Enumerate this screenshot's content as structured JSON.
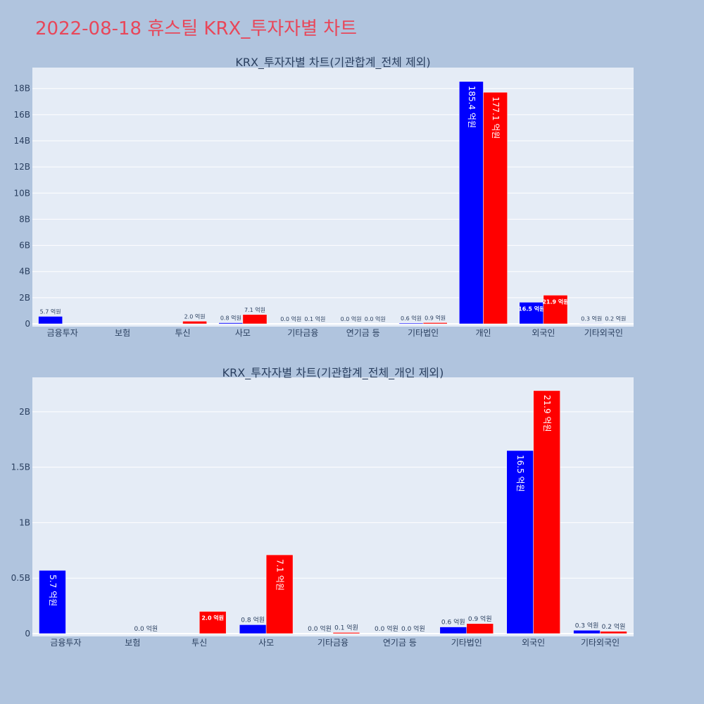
{
  "page": {
    "title": "2022-08-18 휴스틸 KRX_투자자별 차트"
  },
  "colors": {
    "background": "#b0c4de",
    "plot_bg": "#e5ecf6",
    "grid": "#ffffff",
    "title": "#e8475a",
    "text": "#2a3f5f",
    "series_a": "#0000ff",
    "series_b": "#ff0000"
  },
  "chart_data": [
    {
      "type": "bar",
      "title": "KRX_투자자별 차트(기관합계_전체 제외)",
      "categories": [
        "금융투자",
        "보험",
        "투신",
        "사모",
        "기타금융",
        "연기금 등",
        "기타법인",
        "개인",
        "외국인",
        "기타외국인"
      ],
      "series": [
        {
          "values": [
            570000000,
            0,
            0,
            80000000,
            0,
            0,
            60000000,
            18540000000,
            1650000000,
            30000000
          ],
          "labels": [
            "5.7 억원",
            "",
            "",
            "0.8 억원",
            "0.0 억원",
            "0.0 억원",
            "0.6 억원",
            "185.4 억원",
            "16.5 억원",
            "0.3 억원"
          ]
        },
        {
          "values": [
            0,
            0,
            200000000,
            710000000,
            10000000,
            0,
            90000000,
            17710000000,
            2190000000,
            20000000
          ],
          "labels": [
            "",
            "",
            "2.0 억원",
            "7.1 억원",
            "0.1 억원",
            "0.0 억원",
            "0.9 억원",
            "177.1 억원",
            "21.9 억원",
            "0.2 억원"
          ]
        }
      ],
      "yticks": [
        "0",
        "2B",
        "4B",
        "6B",
        "8B",
        "10B",
        "12B",
        "14B",
        "16B",
        "18B"
      ],
      "ylim": [
        0,
        19600000000
      ],
      "grid": true
    },
    {
      "type": "bar",
      "title": "KRX_투자자별 차트(기관합계_전체_개인 제외)",
      "categories": [
        "금융투자",
        "보험",
        "투신",
        "사모",
        "기타금융",
        "연기금 등",
        "기타법인",
        "외국인",
        "기타외국인"
      ],
      "series": [
        {
          "values": [
            570000000,
            0,
            0,
            80000000,
            0,
            0,
            60000000,
            1650000000,
            30000000
          ],
          "labels": [
            "5.7 억원",
            "",
            "",
            "0.8 억원",
            "0.0 억원",
            "0.0 억원",
            "0.6 억원",
            "16.5 억원",
            "0.3 억원"
          ]
        },
        {
          "values": [
            0,
            0,
            200000000,
            710000000,
            10000000,
            0,
            90000000,
            2190000000,
            20000000
          ],
          "labels": [
            "",
            "0.0 억원",
            "2.0 억원",
            "7.1 억원",
            "0.1 억원",
            "0.0 억원",
            "0.9 억원",
            "21.9 억원",
            "0.2 억원"
          ]
        }
      ],
      "yticks": [
        "0",
        "0.5B",
        "1B",
        "1.5B",
        "2B"
      ],
      "ylim": [
        0,
        2310000000
      ],
      "grid": true
    }
  ]
}
